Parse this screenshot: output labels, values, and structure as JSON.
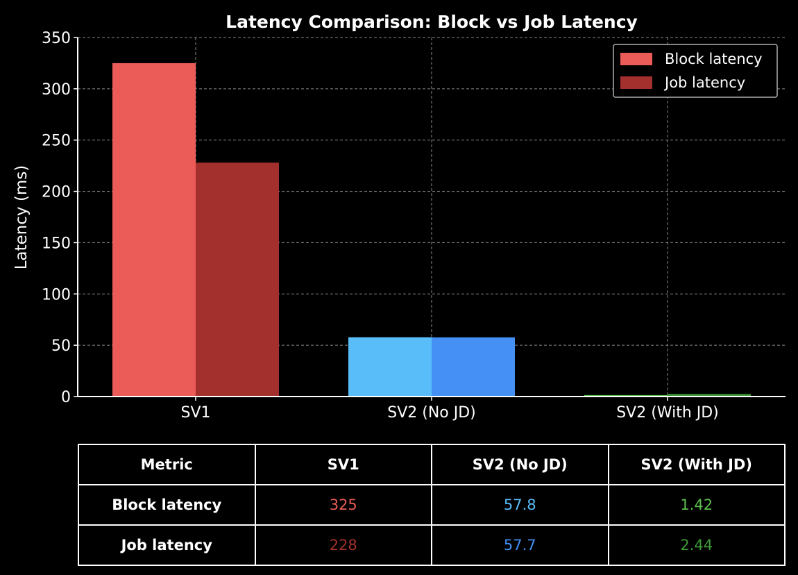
{
  "chart_data": {
    "type": "bar",
    "title": "Latency Comparison: Block vs Job Latency",
    "xlabel": "",
    "ylabel": "Latency (ms)",
    "ylim": [
      0,
      350
    ],
    "yticks": [
      0,
      50,
      100,
      150,
      200,
      250,
      300,
      350
    ],
    "categories": [
      "SV1",
      "SV2 (No JD)",
      "SV2 (With JD)"
    ],
    "series": [
      {
        "name": "Block latency",
        "values": [
          325,
          57.8,
          1.42
        ],
        "colors": [
          "#eb5b57",
          "#58bdf9",
          "#5cbf4d"
        ]
      },
      {
        "name": "Job latency",
        "values": [
          228,
          57.7,
          2.44
        ],
        "colors": [
          "#a3302d",
          "#4490f4",
          "#3e9a38"
        ]
      }
    ],
    "legend": {
      "position": "top-right",
      "colors": [
        "#eb5b57",
        "#a3302d"
      ]
    },
    "grid": true
  },
  "table": {
    "headers": [
      "Metric",
      "SV1",
      "SV2 (No JD)",
      "SV2 (With JD)"
    ],
    "rows": [
      {
        "label": "Block latency",
        "cells": [
          "325",
          "57.8",
          "1.42"
        ],
        "colors": [
          "#eb5b57",
          "#58bdf9",
          "#5cbf4d"
        ]
      },
      {
        "label": "Job latency",
        "cells": [
          "228",
          "57.7",
          "2.44"
        ],
        "colors": [
          "#a3302d",
          "#4490f4",
          "#3e9a38"
        ]
      }
    ]
  }
}
